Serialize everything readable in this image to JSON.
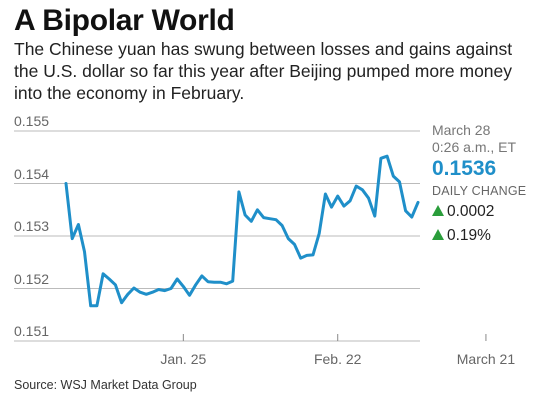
{
  "title": "A Bipolar World",
  "subtitle": "The Chinese yuan has swung between losses and gains against the U.S. dollar so far this year after Beijing pumped more money into the economy in February.",
  "source": "Source: WSJ Market Data Group",
  "panel": {
    "date_line1": "March 28",
    "date_line2": "0:26 a.m., ET",
    "value": "0.1536",
    "change_label": "DAILY CHANGE",
    "change_abs": "0.0002",
    "change_pct": "0.19%"
  },
  "colors": {
    "line": "#1f8fc9",
    "grid": "#bbbbbb",
    "up": "#2a9d3b"
  },
  "chart_data": {
    "type": "line",
    "y_ticks": [
      "0.155",
      "0.154",
      "0.153",
      "0.152",
      "0.151"
    ],
    "ylim": [
      0.151,
      0.155
    ],
    "x_ticks": [
      {
        "label": "Jan. 25",
        "index": 19
      },
      {
        "label": "Feb. 22",
        "index": 44
      },
      {
        "label": "March 21",
        "index": 68
      }
    ],
    "series": [
      {
        "values": [
          0.154,
          0.15295,
          0.15322,
          0.1527,
          0.15167,
          0.15167,
          0.15228,
          0.15218,
          0.15207,
          0.15173,
          0.15189,
          0.15201,
          0.15193,
          0.15189,
          0.15193,
          0.15198,
          0.15196,
          0.152,
          0.15218,
          0.15204,
          0.15187,
          0.15207,
          0.15224,
          0.15213,
          0.15212,
          0.15212,
          0.15209,
          0.15214,
          0.15384,
          0.1534,
          0.15328,
          0.1535,
          0.15335,
          0.15333,
          0.15331,
          0.1532,
          0.15295,
          0.15284,
          0.15258,
          0.15263,
          0.15264,
          0.15305,
          0.1538,
          0.15355,
          0.15376,
          0.15357,
          0.15367,
          0.15395,
          0.15388,
          0.15372,
          0.15338,
          0.15448,
          0.15452,
          0.15414,
          0.15403,
          0.15348,
          0.15336,
          0.15364
        ]
      }
    ]
  }
}
